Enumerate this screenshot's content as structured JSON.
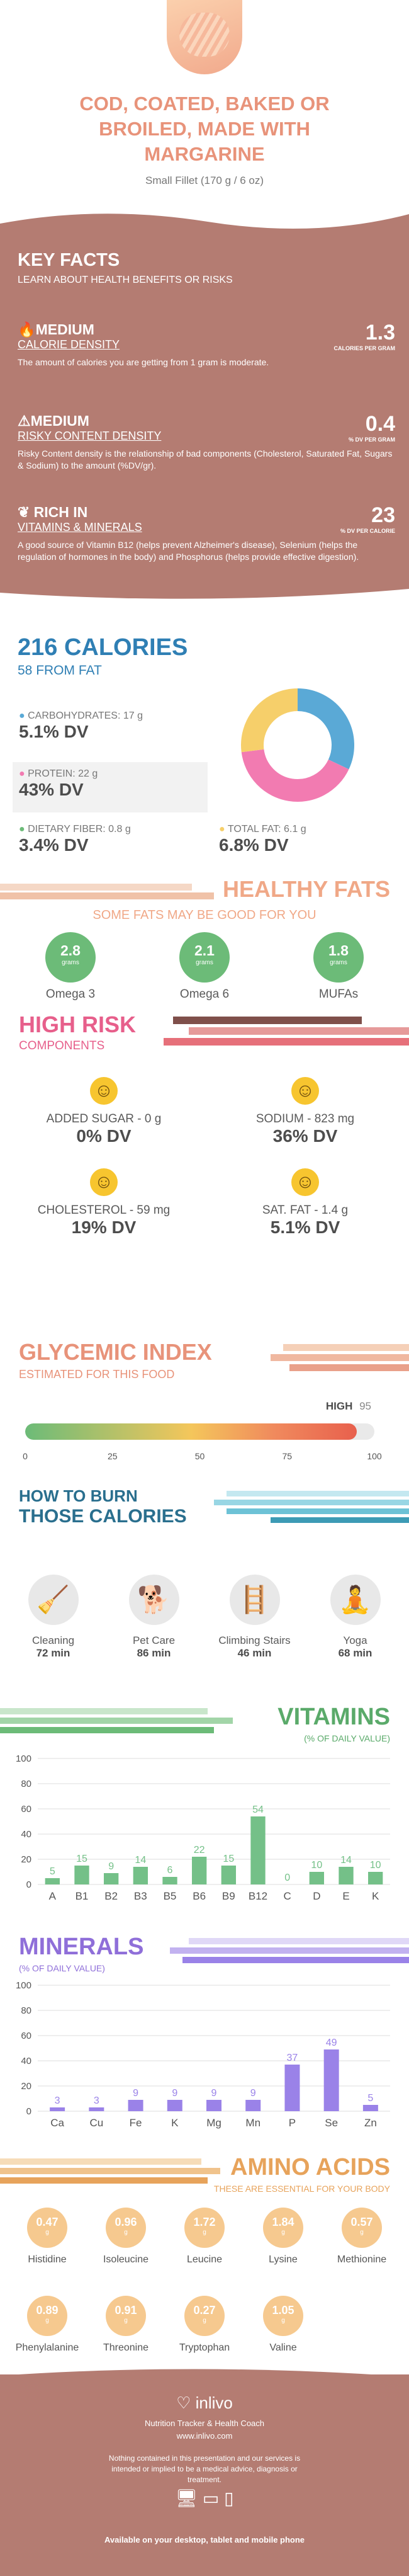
{
  "header": {
    "title_lines": [
      "COD, COATED, BAKED OR",
      "BROILED, MADE WITH",
      "MARGARINE"
    ],
    "serving": "Small Fillet (170 g / 6 oz)"
  },
  "key_facts": {
    "title": "KEY FACTS",
    "subtitle": "LEARN ABOUT HEALTH BENEFITS OR RISKS",
    "items": [
      {
        "level": "MEDIUM",
        "label": "CALORIE DENSITY",
        "value": "1.3",
        "unit": "CALORIES PER GRAM",
        "desc": "The amount of calories you are getting from 1 gram is moderate."
      },
      {
        "level": "MEDIUM",
        "label": "RISKY CONTENT DENSITY",
        "value": "0.4",
        "unit": "% DV PER GRAM",
        "desc": "Risky Content density is the relationship of bad components (Cholesterol, Saturated Fat, Sugars & Sodium) to the amount (%DV/gr)."
      },
      {
        "level": "RICH IN",
        "label": "VITAMINS & MINERALS",
        "value": "23",
        "unit": "% DV PER CALORIE",
        "desc": "A good source of Vitamin B12 (helps prevent Alzheimer's disease), Selenium (helps the regulation of hormones in the body) and Phosphorus (helps provide effective digestion)."
      }
    ]
  },
  "calories": {
    "title": "216 CALORIES",
    "subtitle": "58 FROM FAT",
    "carb_label": "CARBOHYDRATES: 17 g",
    "carb_dv": "5.1% DV",
    "protein_label": "PROTEIN: 22 g",
    "protein_dv": "43% DV",
    "fiber_label": "DIETARY FIBER: 0.8 g",
    "fiber_dv": "3.4% DV",
    "fat_label": "TOTAL FAT: 6.1 g",
    "fat_dv": "6.8% DV",
    "donut": [
      {
        "name": "carbs",
        "value": 32,
        "color": "#5aa9d6"
      },
      {
        "name": "protein",
        "value": 41,
        "color": "#f27bb1"
      },
      {
        "name": "fat",
        "value": 27,
        "color": "#f6cf6a"
      }
    ]
  },
  "healthy_fats": {
    "title": "HEALTHY FATS",
    "subtitle": "SOME FATS MAY BE GOOD FOR YOU",
    "items": [
      {
        "value": "2.8",
        "unit": "grams",
        "name": "Omega 3"
      },
      {
        "value": "2.1",
        "unit": "grams",
        "name": "Omega 6"
      },
      {
        "value": "1.8",
        "unit": "grams",
        "name": "MUFAs"
      }
    ]
  },
  "high_risk": {
    "title": "HIGH RISK",
    "subtitle": "COMPONENTS",
    "items": [
      {
        "label": "ADDED SUGAR - 0 g",
        "dv": "0% DV"
      },
      {
        "label": "SODIUM - 823 mg",
        "dv": "36% DV"
      },
      {
        "label": "CHOLESTEROL - 59 mg",
        "dv": "19% DV"
      },
      {
        "label": "SAT. FAT - 1.4 g",
        "dv": "5.1% DV"
      }
    ]
  },
  "glycemic": {
    "title": "GLYCEMIC INDEX",
    "subtitle": "ESTIMATED FOR THIS FOOD",
    "level": "HIGH",
    "value": "95",
    "value_num": 95,
    "ticks": [
      "0",
      "25",
      "50",
      "75",
      "100"
    ]
  },
  "burn": {
    "title_line1": "HOW TO BURN",
    "title_line2": "THOSE CALORIES",
    "items": [
      {
        "name": "Cleaning",
        "time": "72 min"
      },
      {
        "name": "Pet Care",
        "time": "86 min"
      },
      {
        "name": "Climbing Stairs",
        "time": "46 min"
      },
      {
        "name": "Yoga",
        "time": "68 min"
      }
    ]
  },
  "vitamins": {
    "title": "VITAMINS",
    "subtitle": "(% OF DAILY VALUE)"
  },
  "minerals": {
    "title": "MINERALS",
    "subtitle": "(% OF DAILY VALUE)"
  },
  "chart_data": [
    {
      "type": "bar",
      "title": "VITAMINS",
      "ylim": [
        0,
        100
      ],
      "yticks": [
        "100",
        "80",
        "60",
        "40",
        "20",
        "0"
      ],
      "categories": [
        "A",
        "B1",
        "B2",
        "B3",
        "B5",
        "B6",
        "B9",
        "B12",
        "C",
        "D",
        "E",
        "K"
      ],
      "values": [
        5,
        15,
        9,
        14,
        6,
        22,
        15,
        54,
        0,
        10,
        14,
        10
      ],
      "color": "#74c088"
    },
    {
      "type": "bar",
      "title": "MINERALS",
      "ylim": [
        0,
        100
      ],
      "yticks": [
        "100",
        "80",
        "60",
        "40",
        "20",
        "0"
      ],
      "categories": [
        "Ca",
        "Cu",
        "Fe",
        "K",
        "Mg",
        "Mn",
        "P",
        "Se",
        "Zn"
      ],
      "values": [
        3,
        3,
        9,
        9,
        9,
        9,
        37,
        49,
        5
      ],
      "color": "#9a82e8"
    }
  ],
  "amino": {
    "title": "AMINO ACIDS",
    "subtitle": "THESE ARE ESSENTIAL FOR YOUR BODY",
    "items": [
      {
        "value": "0.47",
        "name": "Histidine"
      },
      {
        "value": "0.96",
        "name": "Isoleucine"
      },
      {
        "value": "1.72",
        "name": "Leucine"
      },
      {
        "value": "1.84",
        "name": "Lysine"
      },
      {
        "value": "0.57",
        "name": "Methionine"
      },
      {
        "value": "0.89",
        "name": "Phenylalanine"
      },
      {
        "value": "0.91",
        "name": "Threonine"
      },
      {
        "value": "0.27",
        "name": "Tryptophan"
      },
      {
        "value": "1.05",
        "name": "Valine"
      }
    ],
    "unit": "g"
  },
  "footer": {
    "brand": "inlivo",
    "tagline": "Nutrition Tracker & Health Coach",
    "url": "www.inlivo.com",
    "disclaimer": "Nothing contained in this presentation and our services is intended or implied to be a medical advice, diagnosis or treatment.",
    "available": "Available on your desktop, tablet and mobile phone"
  },
  "colors": {
    "brown": "#b47c72",
    "brown_dark": "#a86f66",
    "title_orange": "#e8937a",
    "blue": "#2f7fb4",
    "green": "#6cbb78",
    "pink": "#e75f8b",
    "purple": "#8f6fd9",
    "amino": "#e7a35b"
  }
}
